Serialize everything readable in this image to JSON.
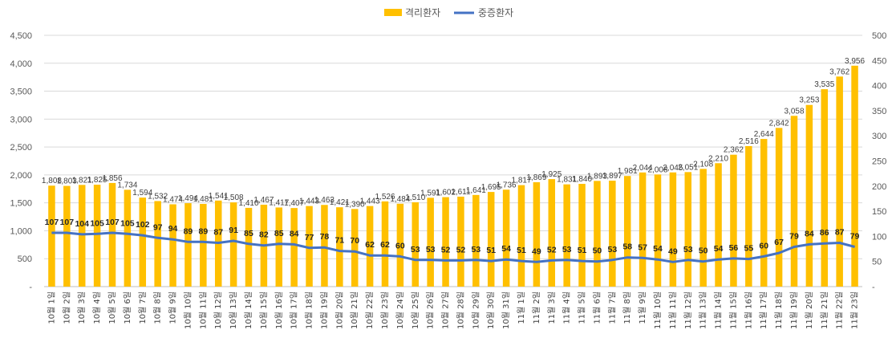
{
  "chart_data": {
    "type": "bar+line",
    "categories": [
      "10월 1일",
      "10월 2일",
      "10월 3일",
      "10월 4일",
      "10월 5일",
      "10월 6일",
      "10월 7일",
      "10월 8일",
      "10월 9일",
      "10월 10일",
      "10월 11일",
      "10월 12일",
      "10월 13일",
      "10월 14일",
      "10월 15일",
      "10월 16일",
      "10월 17일",
      "10월 18일",
      "10월 19일",
      "10월 20일",
      "10월 21일",
      "10월 22일",
      "10월 23일",
      "10월 24일",
      "10월 25일",
      "10월 26일",
      "10월 27일",
      "10월 28일",
      "10월 29일",
      "10월 30일",
      "10월 31일",
      "11월 1일",
      "11월 2일",
      "11월 3일",
      "11월 4일",
      "11월 5일",
      "11월 6일",
      "11월 7일",
      "11월 8일",
      "11월 9일",
      "11월 10일",
      "11월 11일",
      "11월 12일",
      "11월 13일",
      "11월 14일",
      "11월 15일",
      "11월 16일",
      "11월 17일",
      "11월 18일",
      "11월 19일",
      "11월 20일",
      "11월 21일",
      "11월 22일",
      "11월 23일"
    ],
    "series": [
      {
        "name": "격리환자",
        "type": "bar",
        "axis": "left",
        "color": "#FFC000",
        "values": [
          1808,
          1803,
          1821,
          1825,
          1856,
          1734,
          1594,
          1532,
          1474,
          1494,
          1481,
          1541,
          1508,
          1410,
          1467,
          1417,
          1407,
          1443,
          1463,
          1421,
          1390,
          1443,
          1526,
          1484,
          1510,
          1591,
          1602,
          1611,
          1641,
          1695,
          1736,
          1817,
          1869,
          1925,
          1831,
          1840,
          1893,
          1897,
          1981,
          2044,
          2008,
          2045,
          2051,
          2108,
          2210,
          2362,
          2516,
          2644,
          2842,
          3058,
          3253,
          3535,
          3762,
          3956
        ],
        "labels": [
          "1,808",
          "1,803",
          "1,821",
          "1,825",
          "1,856",
          "1,734",
          "1,594",
          "1,532",
          "1,474",
          "1,494",
          "1,481",
          "1,541",
          "1,508",
          "1,410",
          "1,467",
          "1,417",
          "1,407",
          "1,443",
          "1,463",
          "1,421",
          "1,390",
          "1,443",
          "1,526",
          "1,484",
          "1,510",
          "1,591",
          "1,602",
          "1,611",
          "1,641",
          "1,695",
          "1,736",
          "1,817",
          "1,869",
          "1,925",
          "1,831",
          "1,840",
          "1,893",
          "1,897",
          "1,981",
          "2,044",
          "2,008",
          "2,045",
          "2,051",
          "2,108",
          "2,210",
          "2,362",
          "2,516",
          "2,644",
          "2,842",
          "3,058",
          "3,253",
          "3,535",
          "3,762",
          "3,956"
        ]
      },
      {
        "name": "중증환자",
        "type": "line",
        "axis": "right",
        "color": "#4472C4",
        "values": [
          107,
          107,
          104,
          105,
          107,
          105,
          102,
          97,
          94,
          89,
          89,
          87,
          91,
          85,
          82,
          85,
          84,
          77,
          78,
          71,
          70,
          62,
          62,
          60,
          53,
          53,
          52,
          52,
          53,
          51,
          54,
          51,
          49,
          52,
          53,
          51,
          50,
          53,
          58,
          57,
          54,
          49,
          53,
          50,
          54,
          56,
          55,
          60,
          67,
          79,
          84,
          86,
          87,
          79
        ]
      }
    ],
    "y_left": {
      "min": 0,
      "max": 4500,
      "step": 500,
      "ticks": [
        "-",
        "500",
        "1,000",
        "1,500",
        "2,000",
        "2,500",
        "3,000",
        "3,500",
        "4,000",
        "4,500"
      ]
    },
    "y_right": {
      "min": 0,
      "max": 500,
      "step": 50,
      "ticks": [
        "-",
        "50",
        "100",
        "150",
        "200",
        "250",
        "300",
        "350",
        "400",
        "450",
        "500"
      ]
    },
    "legend": {
      "position": "top-center",
      "items": [
        "격리환자",
        "중증환자"
      ]
    },
    "grid": true,
    "title": ""
  }
}
